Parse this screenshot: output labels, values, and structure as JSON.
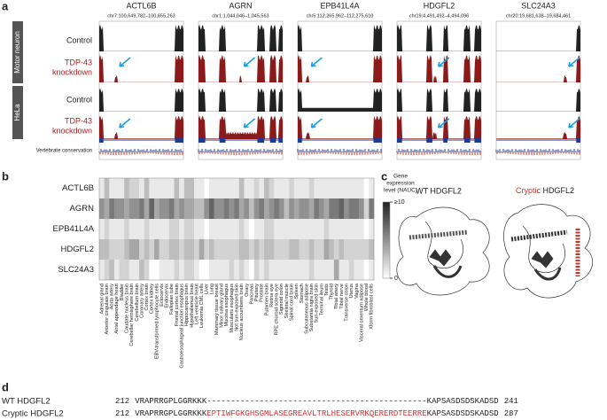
{
  "panel_labels": [
    "a",
    "b",
    "c",
    "d"
  ],
  "panel_a": {
    "genes": [
      {
        "name": "ACTL6B",
        "coords": "chr7:100,649,782–100,655,263"
      },
      {
        "name": "AGRN",
        "coords": "chr1:1,044,046–1,045,563"
      },
      {
        "name": "EPB41L4A",
        "coords": "chr5:112,265,962–112,275,610"
      },
      {
        "name": "HDGFL2",
        "coords": "chr19:4,491,492–4,494,096"
      },
      {
        "name": "SLC24A3",
        "coords": "chr20:19,681,638–19,684,461"
      }
    ],
    "groups": [
      "Motor neuron",
      "HeLa"
    ],
    "control": "Control",
    "knockdown": [
      "TDP-43",
      "knockdown"
    ],
    "conservation": "Vertebrate conservation"
  },
  "chart_data": {
    "type": "heatmap",
    "rows": [
      "ACTL6B",
      "AGRN",
      "EPB41L4A",
      "HDGFL2",
      "SLC24A3"
    ],
    "columns": [
      "Adrenal gland",
      "Anterior cingulate brain",
      "Aorta artery",
      "Atrial appendage heart",
      "Bladder",
      "Caudate nucleus brain",
      "Cerebellar hemisphere brain",
      "Cerebellum brain",
      "Coronary artery",
      "Cortex brain",
      "Cortex kidney",
      "EBV-transformed lymphocyte cells",
      "Ectocervix",
      "Endocervix",
      "Fallopian tube",
      "Frontal cortex brain",
      "Gastroesophageal junction esophagus",
      "Hippocampus brain",
      "Hypothalamus brain",
      "Left ventricle heart",
      "Leukemia CML cells",
      "Liver",
      "Lung",
      "Mammary tissue breast",
      "Minor salivary gland",
      "Mucosa esophagus",
      "Muscularis esophagus",
      "Not sun-exposed skin",
      "Nucleus accumbens brain",
      "Ovary",
      "Pancreas",
      "Pituitary",
      "Prostate",
      "Putamen brain",
      "Retina eye",
      "RPE choroid sclera eye",
      "Sigmoid colon",
      "Skeletal muscle",
      "Spinal cord brain",
      "Spleen",
      "Stomach",
      "Subcutaneous adipose",
      "Substantia nigra brain",
      "Sun-exposed skin",
      "Terminal ileum",
      "Testis",
      "Thyroid",
      "Tibial artery",
      "Tibial nerve",
      "Transverse colon",
      "Uterus",
      "Vagina",
      "Visceral omentum adipose",
      "Whole blood",
      "Xform fibroblast cells"
    ],
    "values": [
      [
        1,
        3,
        1,
        1,
        1,
        3,
        2,
        2,
        1,
        3,
        1,
        1,
        1,
        1,
        1,
        3,
        1,
        3,
        3,
        1,
        1,
        0,
        1,
        1,
        1,
        1,
        1,
        1,
        3,
        1,
        1,
        2,
        1,
        3,
        2,
        1,
        1,
        1,
        2,
        1,
        1,
        1,
        2,
        1,
        1,
        1,
        1,
        1,
        1,
        1,
        1,
        1,
        1,
        0,
        1
      ],
      [
        5,
        4,
        6,
        5,
        5,
        4,
        5,
        5,
        6,
        4,
        7,
        4,
        5,
        5,
        6,
        4,
        5,
        4,
        4,
        3,
        3,
        5,
        7,
        5,
        5,
        6,
        5,
        6,
        4,
        5,
        3,
        5,
        6,
        4,
        5,
        6,
        5,
        3,
        5,
        4,
        5,
        5,
        4,
        6,
        5,
        4,
        6,
        6,
        7,
        5,
        6,
        6,
        5,
        2,
        6
      ],
      [
        1,
        2,
        1,
        1,
        1,
        2,
        1,
        1,
        1,
        2,
        1,
        1,
        1,
        1,
        2,
        2,
        1,
        2,
        2,
        1,
        1,
        0,
        1,
        1,
        1,
        1,
        1,
        1,
        2,
        1,
        0,
        1,
        1,
        2,
        2,
        1,
        1,
        1,
        1,
        1,
        1,
        1,
        1,
        1,
        1,
        2,
        1,
        1,
        1,
        1,
        1,
        1,
        1,
        0,
        1
      ],
      [
        3,
        3,
        2,
        2,
        2,
        3,
        4,
        4,
        2,
        3,
        2,
        4,
        2,
        2,
        3,
        3,
        2,
        3,
        3,
        2,
        4,
        2,
        3,
        2,
        2,
        2,
        2,
        2,
        3,
        3,
        2,
        3,
        2,
        3,
        3,
        2,
        2,
        2,
        3,
        3,
        2,
        2,
        3,
        2,
        2,
        4,
        3,
        2,
        3,
        2,
        2,
        2,
        2,
        2,
        3
      ],
      [
        1,
        2,
        3,
        1,
        2,
        2,
        1,
        1,
        3,
        2,
        0,
        0,
        1,
        1,
        1,
        2,
        1,
        2,
        2,
        1,
        0,
        0,
        1,
        1,
        1,
        1,
        2,
        1,
        2,
        1,
        0,
        2,
        1,
        2,
        1,
        1,
        1,
        1,
        1,
        1,
        1,
        1,
        2,
        1,
        1,
        1,
        1,
        4,
        1,
        1,
        2,
        1,
        1,
        0,
        1
      ]
    ],
    "colorbar_title": [
      "Gene",
      "expression",
      "level (NAUC)"
    ],
    "zlim": [
      0,
      10
    ],
    "zticks": [
      0,
      {
        "value": 10,
        "label": "≥10"
      }
    ]
  },
  "panel_c": {
    "wt_title": "WT HDGFL2",
    "cryptic_word": "Cryptic",
    "cryptic_rest": " HDGFL2"
  },
  "panel_d": {
    "rows": [
      {
        "name": "WT HDGFL2",
        "start": 212,
        "seq_before": "VRAPRRGPLGGRKKK",
        "insert": "----------------------------------------------",
        "seq_after": "KAPSASDSDSKADSD",
        "end": 241
      },
      {
        "name": "Cryptic HDGFL2",
        "start": 212,
        "seq_before": "VRAPRRGPLGGRKKK",
        "insert": "EPTIWFGKGHSGMLASEGREAVLTRLHESERVRKQERERDTEERRE",
        "seq_after": "KAPSASDSDSKADSD",
        "end": 287
      }
    ]
  }
}
